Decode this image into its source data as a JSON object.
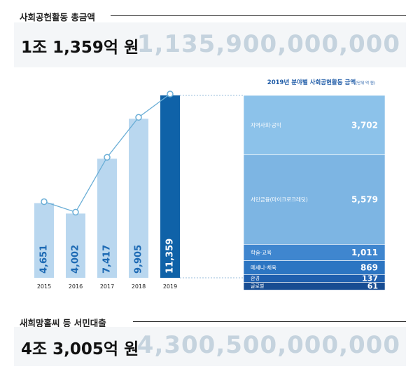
{
  "top_summary": {
    "label": "사회공헌활동 총금액",
    "korean_amount": "1조 1,359억 원",
    "numeric_amount": "1,135,900,000,000"
  },
  "bottom_summary": {
    "label": "새희망홀씨 등 서민대출",
    "korean_amount": "4조 3,005억 원",
    "numeric_amount": "4,300,500,000,000"
  },
  "colors": {
    "bar_light": "#b9d7ef",
    "bar_highlight": "#0f62a8",
    "line": "#6aaed6",
    "value_label": "#1d6ab4"
  },
  "chart_data": [
    {
      "type": "bar",
      "title": "",
      "categories": [
        "2015",
        "2016",
        "2017",
        "2018",
        "2019"
      ],
      "values": [
        4651,
        4002,
        7417,
        9905,
        11359
      ],
      "value_labels": [
        "4,651",
        "4,002",
        "7,417",
        "9,905",
        "11,359"
      ],
      "highlight": "2019",
      "trend_line": true,
      "grid": false
    },
    {
      "type": "bar",
      "stacked": true,
      "title": "2019년 분야별 사회공헌활동 금액",
      "unit": "(단위 억 원)",
      "categories": [
        "지역사회·공익",
        "서민금융(마이크로크레딧)",
        "학술·교육",
        "메세나·체육",
        "환경",
        "글로벌"
      ],
      "values": [
        3702,
        5579,
        1011,
        869,
        137,
        61
      ],
      "value_labels": [
        "3,702",
        "5,579",
        "1,011",
        "869",
        "137",
        "61"
      ],
      "segment_colors": [
        "#8cc2ea",
        "#7db5e3",
        "#3f86cf",
        "#2c75c2",
        "#1f5fae",
        "#174c92"
      ]
    }
  ]
}
